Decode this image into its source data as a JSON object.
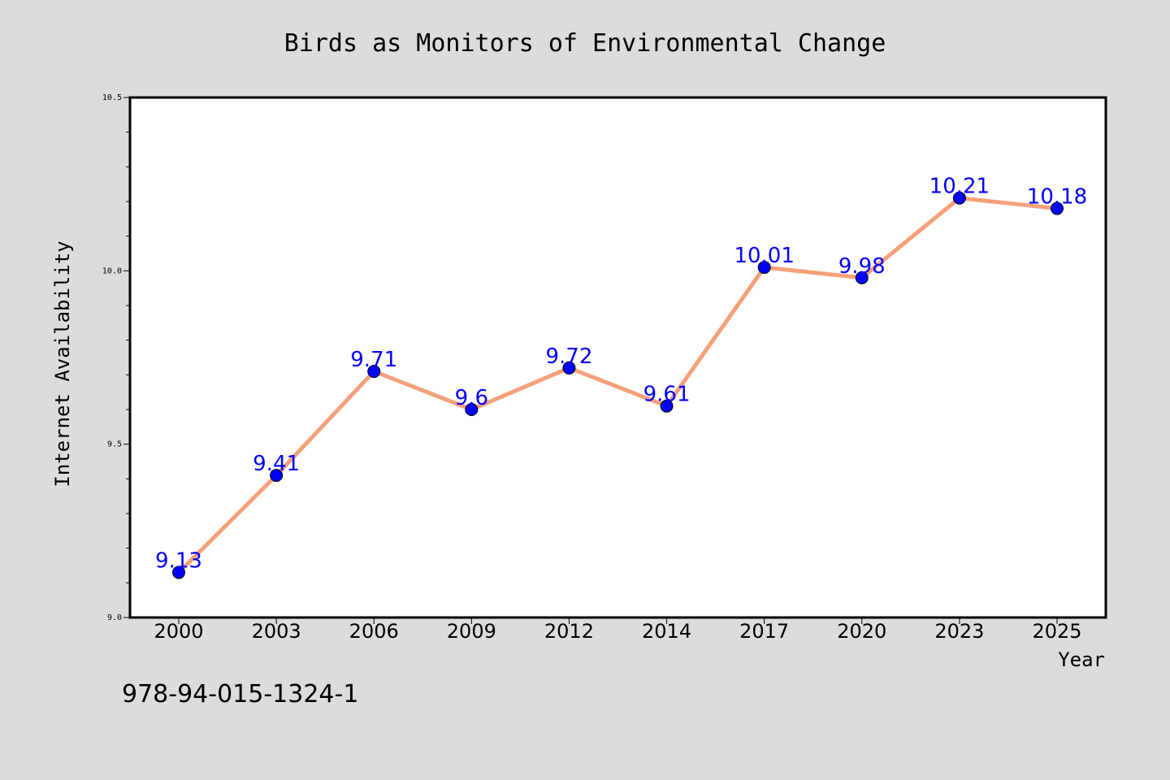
{
  "chart_data": {
    "type": "line",
    "title": "Birds as Monitors of Environmental Change",
    "xlabel": "Year",
    "ylabel": "Internet Availability",
    "categories": [
      "2000",
      "2003",
      "2006",
      "2009",
      "2012",
      "2014",
      "2017",
      "2020",
      "2023",
      "2025"
    ],
    "series": [
      {
        "values": [
          9.13,
          9.41,
          9.71,
          9.6,
          9.72,
          9.61,
          10.01,
          9.98,
          10.21,
          10.18
        ],
        "labels": [
          "9.13",
          "9.41",
          "9.71",
          "9.6",
          "9.72",
          "9.61",
          "10.01",
          "9.98",
          "10.21",
          "10.18"
        ],
        "line_color": "#f4a07a",
        "marker_color": "#0000ff"
      }
    ],
    "ylim": [
      9.0,
      10.5
    ],
    "y_ticks": [
      "9.0",
      "9.5",
      "10.0",
      "10.5"
    ],
    "grid": false,
    "annotation": "978-94-015-1324-1"
  },
  "colors": {
    "background": "#dcdcdc",
    "plot_area": "#ffffff",
    "label_color": "#0000ff"
  }
}
